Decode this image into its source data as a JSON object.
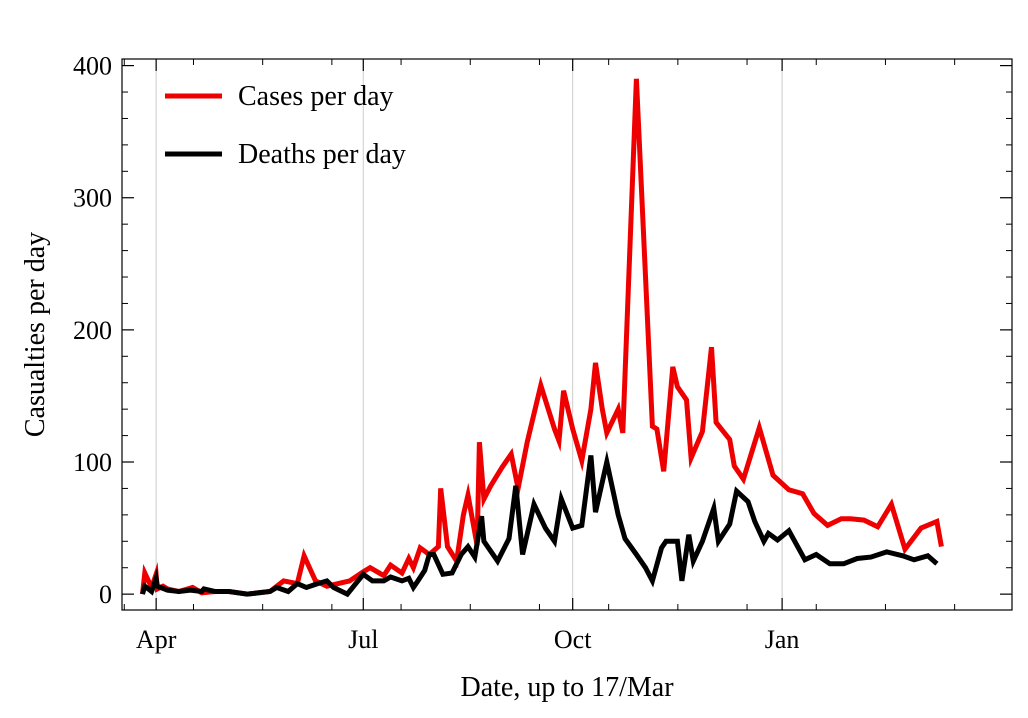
{
  "chart_data": {
    "type": "line",
    "title": "",
    "xlabel": "Date, up to 17/Mar",
    "ylabel": "Casualties per day",
    "ylim": [
      -12,
      405
    ],
    "xlim": [
      -15,
      376
    ],
    "x_unit": "days from 1 Apr",
    "yticks": [
      0,
      100,
      200,
      300,
      400
    ],
    "xticks": [
      {
        "label": "Apr",
        "value": 0
      },
      {
        "label": "Jul",
        "value": 91
      },
      {
        "label": "Oct",
        "value": 183
      },
      {
        "label": "Jan",
        "value": 275
      }
    ],
    "grid": "vertical gridlines at month labels",
    "legend": "top-left",
    "series": [
      {
        "name": "Cases per day",
        "color": "#ee0000",
        "points": [
          [
            -6,
            0
          ],
          [
            -5,
            16
          ],
          [
            -2,
            5
          ],
          [
            0,
            15
          ],
          [
            0.5,
            4
          ],
          [
            3,
            6
          ],
          [
            5,
            4
          ],
          [
            10,
            2
          ],
          [
            16,
            5
          ],
          [
            20,
            1
          ],
          [
            26,
            2
          ],
          [
            32,
            2
          ],
          [
            40,
            0
          ],
          [
            50,
            2
          ],
          [
            56,
            10
          ],
          [
            62,
            8
          ],
          [
            65,
            29
          ],
          [
            70,
            10
          ],
          [
            75,
            6
          ],
          [
            80,
            8
          ],
          [
            85,
            10
          ],
          [
            91,
            17
          ],
          [
            94,
            20
          ],
          [
            100,
            14
          ],
          [
            103,
            22
          ],
          [
            108,
            16
          ],
          [
            111,
            27
          ],
          [
            113,
            20
          ],
          [
            116,
            35
          ],
          [
            120,
            30
          ],
          [
            124,
            36
          ],
          [
            125,
            80
          ],
          [
            128,
            36
          ],
          [
            132,
            25
          ],
          [
            135,
            60
          ],
          [
            137,
            75
          ],
          [
            141,
            37
          ],
          [
            142,
            115
          ],
          [
            144,
            72
          ],
          [
            147,
            82
          ],
          [
            152,
            96
          ],
          [
            156,
            106
          ],
          [
            159,
            80
          ],
          [
            163,
            115
          ],
          [
            169,
            158
          ],
          [
            175,
            125
          ],
          [
            177,
            116
          ],
          [
            179,
            154
          ],
          [
            183,
            125
          ],
          [
            187,
            101
          ],
          [
            191,
            140
          ],
          [
            193,
            175
          ],
          [
            196,
            140
          ],
          [
            198,
            122
          ],
          [
            203,
            140
          ],
          [
            205,
            122
          ],
          [
            211,
            390
          ],
          [
            218,
            127
          ],
          [
            220,
            125
          ],
          [
            223,
            93
          ],
          [
            227,
            172
          ],
          [
            229,
            157
          ],
          [
            233,
            147
          ],
          [
            235,
            103
          ],
          [
            240,
            123
          ],
          [
            244,
            187
          ],
          [
            246,
            130
          ],
          [
            252,
            117
          ],
          [
            254,
            97
          ],
          [
            258,
            87
          ],
          [
            265,
            126
          ],
          [
            271,
            90
          ],
          [
            278,
            79
          ],
          [
            284,
            76
          ],
          [
            289,
            61
          ],
          [
            295,
            52
          ],
          [
            301,
            57
          ],
          [
            305,
            57
          ],
          [
            311,
            56
          ],
          [
            317,
            51
          ],
          [
            323,
            68
          ],
          [
            329,
            34
          ],
          [
            336,
            50
          ],
          [
            343,
            55
          ],
          [
            345,
            36
          ]
        ]
      },
      {
        "name": "Deaths per day",
        "color": "#000000",
        "points": [
          [
            -6,
            0
          ],
          [
            -5,
            6
          ],
          [
            -2,
            2
          ],
          [
            0,
            12
          ],
          [
            0.5,
            6
          ],
          [
            5,
            3
          ],
          [
            10,
            2
          ],
          [
            15,
            3
          ],
          [
            20,
            2
          ],
          [
            21,
            4
          ],
          [
            26,
            2
          ],
          [
            32,
            2
          ],
          [
            40,
            0
          ],
          [
            50,
            2
          ],
          [
            53,
            5
          ],
          [
            58,
            2
          ],
          [
            62,
            8
          ],
          [
            66,
            5
          ],
          [
            71,
            8
          ],
          [
            75,
            10
          ],
          [
            78,
            5
          ],
          [
            84,
            0
          ],
          [
            91,
            15
          ],
          [
            95,
            10
          ],
          [
            100,
            10
          ],
          [
            103,
            13
          ],
          [
            108,
            10
          ],
          [
            111,
            12
          ],
          [
            113,
            5
          ],
          [
            115,
            10
          ],
          [
            118,
            18
          ],
          [
            120,
            30
          ],
          [
            122,
            30
          ],
          [
            126,
            15
          ],
          [
            130,
            16
          ],
          [
            134,
            30
          ],
          [
            137,
            36
          ],
          [
            140,
            28
          ],
          [
            143,
            59
          ],
          [
            144,
            40
          ],
          [
            150,
            25
          ],
          [
            155,
            42
          ],
          [
            158,
            82
          ],
          [
            161,
            30
          ],
          [
            166,
            68
          ],
          [
            171,
            50
          ],
          [
            175,
            40
          ],
          [
            178,
            72
          ],
          [
            183,
            50
          ],
          [
            187,
            52
          ],
          [
            191,
            105
          ],
          [
            193,
            62
          ],
          [
            198,
            100
          ],
          [
            203,
            60
          ],
          [
            206,
            42
          ],
          [
            211,
            30
          ],
          [
            215,
            20
          ],
          [
            218,
            10
          ],
          [
            222,
            35
          ],
          [
            224,
            40
          ],
          [
            229,
            40
          ],
          [
            231,
            10
          ],
          [
            234,
            45
          ],
          [
            236,
            25
          ],
          [
            240,
            40
          ],
          [
            245,
            65
          ],
          [
            247,
            40
          ],
          [
            252,
            53
          ],
          [
            255,
            78
          ],
          [
            260,
            70
          ],
          [
            263,
            55
          ],
          [
            267,
            40
          ],
          [
            269,
            46
          ],
          [
            273,
            41
          ],
          [
            278,
            48
          ],
          [
            285,
            26
          ],
          [
            290,
            30
          ],
          [
            296,
            23
          ],
          [
            302,
            23
          ],
          [
            308,
            27
          ],
          [
            314,
            28
          ],
          [
            321,
            32
          ],
          [
            328,
            29
          ],
          [
            333,
            26
          ],
          [
            339,
            29
          ],
          [
            343,
            23
          ]
        ]
      }
    ]
  }
}
